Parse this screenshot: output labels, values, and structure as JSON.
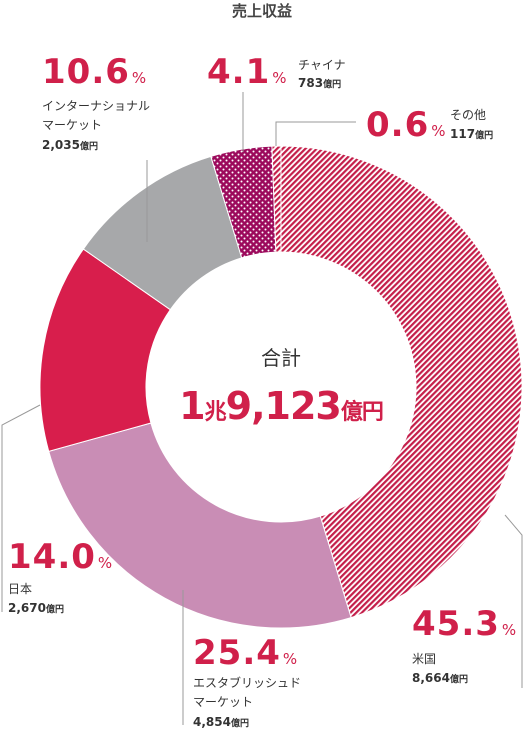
{
  "chart_data": {
    "type": "donut",
    "title": "売上収益",
    "center_label": "合計",
    "center_value": "1兆9,123億円",
    "categories": [
      "米国",
      "エスタブリッシュド\nマーケット",
      "日本",
      "インターナショナル\nマーケット",
      "チャイナ",
      "その他"
    ],
    "values": [
      45.3,
      25.4,
      14.0,
      10.6,
      4.1,
      0.6
    ],
    "value_labels": [
      "45.3%",
      "25.4%",
      "14.0%",
      "10.6%",
      "4.1%",
      "0.6%"
    ],
    "amount_labels": [
      "8,664億円",
      "4,854億円",
      "2,670億円",
      "2,035億円",
      "783億円",
      "117億円"
    ],
    "colors": [
      "#c41e4a",
      "#c98db5",
      "#d81e4c",
      "#a7a8aa",
      "#9c0a5c",
      "#c41e4a"
    ],
    "patterns": [
      "stripes",
      null,
      null,
      null,
      "dots",
      "stripes"
    ]
  }
}
